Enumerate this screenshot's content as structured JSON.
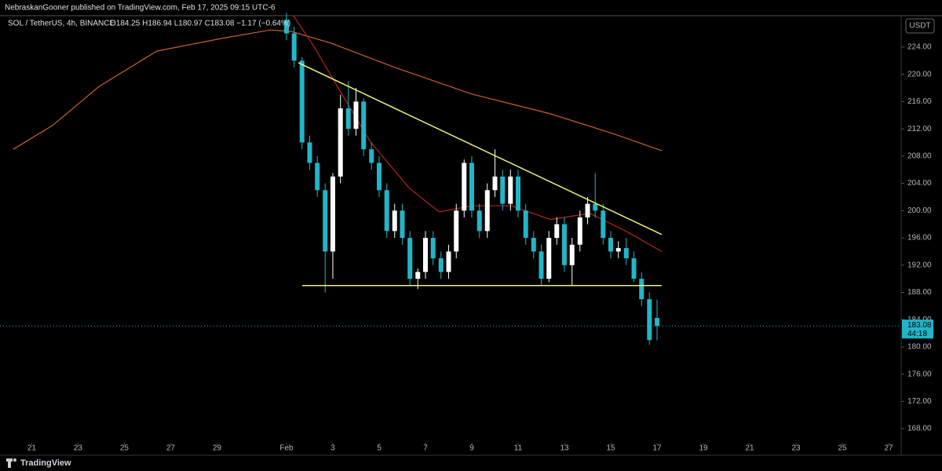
{
  "chart_data": {
    "type": "candlestick",
    "publisher": "NebraskanGooner published on TradingView.com, Feb 17, 2025 09:15 UTC-6",
    "symbol": "SOL / TetherUS, 4h, BINANCE",
    "ohlc_text": "O184.25 H186.94 L180.97 C183.08 −1.17 (−0.64%)",
    "currency": "USDT",
    "brand": "TradingView",
    "last_price": 183.08,
    "countdown": "44:18",
    "up_color": "#ffffff",
    "down_color": "#22b5c8",
    "xlim": [
      19.63,
      58.54
    ],
    "ylim": [
      166.4,
      228.6
    ],
    "xticks": [
      21,
      23,
      25,
      27,
      29,
      {
        "value": 32,
        "label": "Feb"
      },
      {
        "value": 34,
        "label": "3"
      },
      {
        "value": 36,
        "label": "5"
      },
      {
        "value": 38,
        "label": "7"
      },
      {
        "value": 40,
        "label": "9"
      },
      {
        "value": 42,
        "label": "11"
      },
      {
        "value": 44,
        "label": "13"
      },
      {
        "value": 46,
        "label": "15"
      },
      {
        "value": 48,
        "label": "17"
      },
      {
        "value": 50,
        "label": "19"
      },
      {
        "value": 52,
        "label": "21"
      },
      {
        "value": 54,
        "label": "23"
      },
      {
        "value": 56,
        "label": "25"
      },
      {
        "value": 58,
        "label": "27"
      }
    ],
    "yticks": [
      {
        "value": 168,
        "label": "168.00"
      },
      {
        "value": 172,
        "label": "172.00"
      },
      {
        "value": 176,
        "label": "176.00"
      },
      {
        "value": 180,
        "label": "180.00"
      },
      {
        "value": 184,
        "label": "184.00"
      },
      {
        "value": 188,
        "label": "188.00"
      },
      {
        "value": 192,
        "label": "192.00"
      },
      {
        "value": 196,
        "label": "196.00"
      },
      {
        "value": 200,
        "label": "200.00"
      },
      {
        "value": 204,
        "label": "204.00"
      },
      {
        "value": 208,
        "label": "208.00"
      },
      {
        "value": 212,
        "label": "212.00"
      },
      {
        "value": 216,
        "label": "216.00"
      },
      {
        "value": 220,
        "label": "220.00"
      },
      {
        "value": 224,
        "label": "224.00"
      }
    ],
    "x": [
      32,
      32.33,
      32.67,
      33,
      33.33,
      33.67,
      34,
      34.33,
      34.67,
      35,
      35.33,
      35.67,
      36,
      36.33,
      36.67,
      37,
      37.33,
      37.67,
      38,
      38.33,
      38.67,
      39,
      39.33,
      39.67,
      40,
      40.33,
      40.67,
      41,
      41.33,
      41.67,
      42,
      42.33,
      42.67,
      43,
      43.33,
      43.67,
      44,
      44.33,
      44.67,
      45,
      45.33,
      45.67,
      46,
      46.33,
      46.67,
      47,
      47.33,
      47.67,
      48
    ],
    "open": [
      228,
      226,
      222,
      210,
      207,
      203,
      194,
      205,
      215,
      212,
      216,
      209,
      207,
      203,
      197,
      200,
      196,
      190,
      191,
      196,
      193,
      191,
      194,
      200,
      207,
      200,
      197,
      203,
      205,
      201,
      205,
      200,
      196,
      194,
      190,
      196,
      198,
      192,
      195,
      199,
      201,
      200,
      196,
      194,
      194.5,
      193,
      190,
      187,
      184.25
    ],
    "high": [
      229,
      227,
      222.5,
      211,
      208,
      204,
      205.5,
      217,
      219,
      218,
      216.5,
      210,
      208,
      204,
      201,
      201,
      197,
      191.5,
      197,
      197,
      194,
      195,
      201,
      207.5,
      208,
      201,
      204,
      209,
      206,
      206,
      206,
      201,
      197,
      195,
      197,
      199,
      199,
      196,
      200,
      202,
      205.5,
      201,
      197,
      195.5,
      196,
      194,
      191,
      188,
      186.94
    ],
    "low": [
      225,
      221,
      209,
      206,
      202,
      188,
      190,
      204,
      211,
      211,
      208,
      206,
      202,
      196,
      196,
      195,
      189,
      188.5,
      190,
      192,
      190,
      190,
      193,
      199,
      199,
      196,
      196,
      202,
      200,
      200,
      199,
      195,
      193,
      189,
      189.5,
      195,
      191,
      189,
      194,
      198,
      199,
      195,
      193,
      193,
      192,
      189.5,
      186,
      180.3,
      180.97
    ],
    "close": [
      226,
      222,
      210,
      207,
      203,
      194,
      205,
      215,
      212,
      216,
      209,
      207,
      203,
      197,
      200,
      196,
      190,
      191,
      196,
      193,
      191,
      194,
      200,
      207,
      200,
      197,
      203,
      205,
      201,
      205,
      200,
      196,
      194,
      190,
      196,
      198,
      192,
      195,
      199,
      201,
      200,
      196,
      194,
      194.5,
      193,
      190,
      187,
      181,
      183.08
    ],
    "series": [
      {
        "color": "#c8602e",
        "x": [
          20.2,
          21.9,
          23.9,
          26.4,
          29.1,
          31.3,
          32.2,
          33.9,
          36.6,
          40,
          43.4,
          46.1,
          48.2
        ],
        "values": [
          209,
          212.5,
          218.2,
          223.4,
          225.2,
          226.5,
          226.3,
          224.6,
          221.1,
          217.1,
          214.2,
          211.3,
          208.8
        ]
      },
      {
        "color": "#b3261e",
        "x": [
          32.3,
          33.2,
          34.2,
          35.6,
          37.3,
          38.6,
          40,
          41.7,
          43.4,
          45.1,
          46.7,
          48.2
        ],
        "values": [
          228.6,
          224,
          218.2,
          210.2,
          203.3,
          199.8,
          200.7,
          200.7,
          198.7,
          199.6,
          196.9,
          194
        ]
      }
    ],
    "trendlines": [
      {
        "color": "#f0f07a",
        "x": [
          32.51,
          48.2
        ],
        "y": [
          221.7,
          196.5
        ]
      },
      {
        "color": "#f0f07a",
        "x": [
          32.68,
          48.2
        ],
        "y": [
          189,
          189
        ]
      }
    ]
  }
}
